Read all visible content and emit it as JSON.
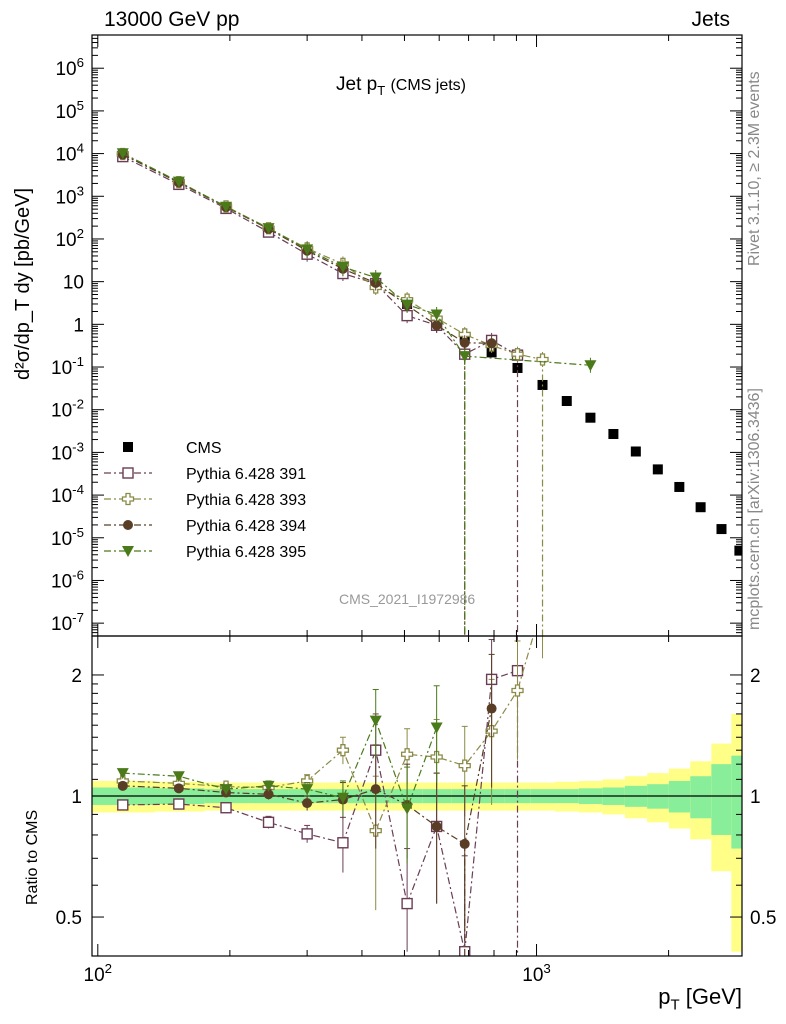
{
  "header": {
    "left": "13000 GeV pp",
    "right": "Jets"
  },
  "side_labels": {
    "top": "Rivet 3.1.10, ≥ 2.3M events",
    "bottom": "mcplots.cern.ch [arXiv:1306.3436]"
  },
  "chart_data": {
    "type": "scatter",
    "title_main": "Jet p",
    "title_sub": "T",
    "title_tail": "(CMS jets)",
    "watermark": "CMS_2021_I1972986",
    "xlabel": "p",
    "xlabel_sub": "T",
    "xlabel_unit": "[GeV]",
    "xscale": "log",
    "xlim": [
      97,
      2940
    ],
    "x_ticks": [
      {
        "value": 100,
        "label": "10^2"
      },
      {
        "value": 1000,
        "label": "10^3"
      }
    ],
    "upper": {
      "yscale": "log",
      "ylim": [
        5e-08,
        6000000.0
      ],
      "ylabel": "d²σ/dp_T dy [pb/GeV]",
      "y_ticks": [
        {
          "value": 1000000.0,
          "label": "10^6"
        },
        {
          "value": 100000.0,
          "label": "10^5"
        },
        {
          "value": 10000.0,
          "label": "10^4"
        },
        {
          "value": 1000.0,
          "label": "10^3"
        },
        {
          "value": 100,
          "label": "10^2"
        },
        {
          "value": 10,
          "label": "10"
        },
        {
          "value": 1,
          "label": "1"
        },
        {
          "value": 0.1,
          "label": "10^-1"
        },
        {
          "value": 0.01,
          "label": "10^-2"
        },
        {
          "value": 0.001,
          "label": "10^-3"
        },
        {
          "value": 0.0001,
          "label": "10^-4"
        },
        {
          "value": 1e-05,
          "label": "10^-5"
        },
        {
          "value": 1e-06,
          "label": "10^-6"
        },
        {
          "value": 1e-07,
          "label": "10^-7"
        }
      ],
      "legend_position": "lower-left",
      "series": [
        {
          "name": "CMS",
          "color": "#000000",
          "marker": "square-filled",
          "connect": false,
          "x": [
            114,
            153,
            196,
            245,
            300,
            362,
            430,
            507,
            592,
            686,
            790,
            905,
            1032,
            1172,
            1327,
            1497,
            1684,
            1890,
            2116,
            2366,
            2640,
            2900
          ],
          "y": [
            9000,
            2000,
            550,
            170,
            55,
            20,
            9,
            3,
            1.1,
            0.5,
            0.22,
            0.095,
            0.038,
            0.016,
            0.0065,
            0.0027,
            0.00105,
            0.0004,
            0.000155,
            5.2e-05,
            1.6e-05,
            5e-06
          ]
        },
        {
          "name": "Pythia 6.428 391",
          "color": "#6a3d55",
          "marker": "square-open",
          "connect": true,
          "x": [
            114,
            153,
            196,
            245,
            300,
            362,
            430,
            507,
            592,
            686,
            790,
            905
          ],
          "y": [
            8500,
            1900,
            520,
            145,
            44,
            15.5,
            9,
            1.6,
            0.95,
            0.2,
            0.42,
            0.19
          ],
          "drop_at": 905
        },
        {
          "name": "Pythia 6.428 393",
          "color": "#8b8a46",
          "marker": "cross-open",
          "connect": true,
          "x": [
            114,
            153,
            196,
            245,
            300,
            362,
            430,
            507,
            592,
            686,
            790,
            905,
            1032
          ],
          "y": [
            9800,
            2150,
            580,
            178,
            60,
            26,
            7.3,
            3.8,
            1.4,
            0.58,
            0.32,
            0.2,
            0.15
          ],
          "drop_at": 1032
        },
        {
          "name": "Pythia 6.428 394",
          "color": "#5a3d25",
          "marker": "circle-filled",
          "connect": true,
          "x": [
            114,
            153,
            196,
            245,
            300,
            362,
            430,
            507,
            592,
            686,
            790
          ],
          "y": [
            9500,
            2100,
            560,
            172,
            53,
            20,
            9.3,
            2.8,
            0.95,
            0.37,
            0.36
          ],
          "drop_at": 686
        },
        {
          "name": "Pythia 6.428 395",
          "color": "#4a7a1a",
          "marker": "triangle-down-filled",
          "connect": true,
          "x": [
            114,
            153,
            196,
            245,
            300,
            362,
            430,
            507,
            592,
            686,
            1327
          ],
          "y": [
            10200,
            2200,
            570,
            180,
            57,
            22,
            12.5,
            2.9,
            1.7,
            0.18,
            0.11
          ],
          "drop_at": 686
        }
      ]
    },
    "lower": {
      "ylabel": "Ratio to CMS",
      "yscale": "log",
      "ylim": [
        0.4,
        2.5
      ],
      "y_ticks": [
        {
          "value": 0.5,
          "label": "0.5"
        },
        {
          "value": 1,
          "label": "1"
        },
        {
          "value": 2,
          "label": "2"
        }
      ],
      "band_edges": [
        97,
        135,
        175,
        220,
        272,
        330,
        395,
        468,
        549,
        639,
        737,
        847,
        968,
        1102,
        1249,
        1412,
        1590,
        1787,
        2003,
        2241,
        2503,
        2780,
        2940
      ],
      "band_inner": [
        0.05,
        0.045,
        0.04,
        0.04,
        0.04,
        0.04,
        0.04,
        0.04,
        0.04,
        0.04,
        0.04,
        0.04,
        0.04,
        0.04,
        0.045,
        0.05,
        0.06,
        0.07,
        0.09,
        0.12,
        0.2,
        0.26
      ],
      "band_outer": [
        0.09,
        0.085,
        0.08,
        0.08,
        0.08,
        0.08,
        0.08,
        0.08,
        0.08,
        0.08,
        0.08,
        0.08,
        0.08,
        0.085,
        0.09,
        0.1,
        0.12,
        0.14,
        0.17,
        0.22,
        0.35,
        0.6
      ],
      "series": [
        {
          "name": "Pythia 6.428 391",
          "color": "#6a3d55",
          "marker": "square-open",
          "x": [
            114,
            153,
            196,
            245,
            300,
            362,
            430,
            507,
            592,
            686,
            790,
            905
          ],
          "y": [
            0.95,
            0.955,
            0.935,
            0.86,
            0.805,
            0.765,
            1.3,
            0.54,
            0.84,
            0.41,
            1.95,
            2.05
          ],
          "err": [
            0.02,
            0.02,
            0.02,
            0.03,
            0.04,
            0.12,
            0.3,
            0.2,
            0.3,
            0.3,
            0.5,
            0.6
          ],
          "tail_x": 905
        },
        {
          "name": "Pythia 6.428 393",
          "color": "#8b8a46",
          "marker": "cross-open",
          "x": [
            114,
            153,
            196,
            245,
            300,
            362,
            430,
            507,
            592,
            686,
            790,
            905,
            1032
          ],
          "y": [
            1.09,
            1.075,
            1.055,
            1.05,
            1.09,
            1.3,
            0.82,
            1.27,
            1.25,
            1.19,
            1.45,
            1.83,
            3.0
          ],
          "err": [
            0.02,
            0.02,
            0.02,
            0.03,
            0.04,
            0.1,
            0.3,
            0.2,
            0.3,
            0.3,
            0.5,
            0.6,
            0.8
          ]
        },
        {
          "name": "Pythia 6.428 394",
          "color": "#5a3d25",
          "marker": "circle-filled",
          "x": [
            114,
            153,
            196,
            245,
            300,
            362,
            430,
            507,
            592,
            686,
            790
          ],
          "y": [
            1.06,
            1.045,
            1.02,
            1.01,
            0.96,
            0.98,
            1.04,
            0.95,
            0.84,
            0.76,
            1.65
          ],
          "err": [
            0.02,
            0.02,
            0.02,
            0.03,
            0.04,
            0.1,
            0.3,
            0.25,
            0.3,
            0.3,
            0.6
          ],
          "tail_x": 686
        },
        {
          "name": "Pythia 6.428 395",
          "color": "#4a7a1a",
          "marker": "triangle-down-filled",
          "x": [
            114,
            153,
            196,
            245,
            300,
            362,
            430,
            507,
            592
          ],
          "y": [
            1.14,
            1.12,
            1.04,
            1.06,
            1.04,
            0.99,
            1.54,
            0.93,
            1.48
          ],
          "err": [
            0.02,
            0.02,
            0.02,
            0.03,
            0.04,
            0.1,
            0.3,
            0.25,
            0.4
          ]
        }
      ]
    }
  }
}
